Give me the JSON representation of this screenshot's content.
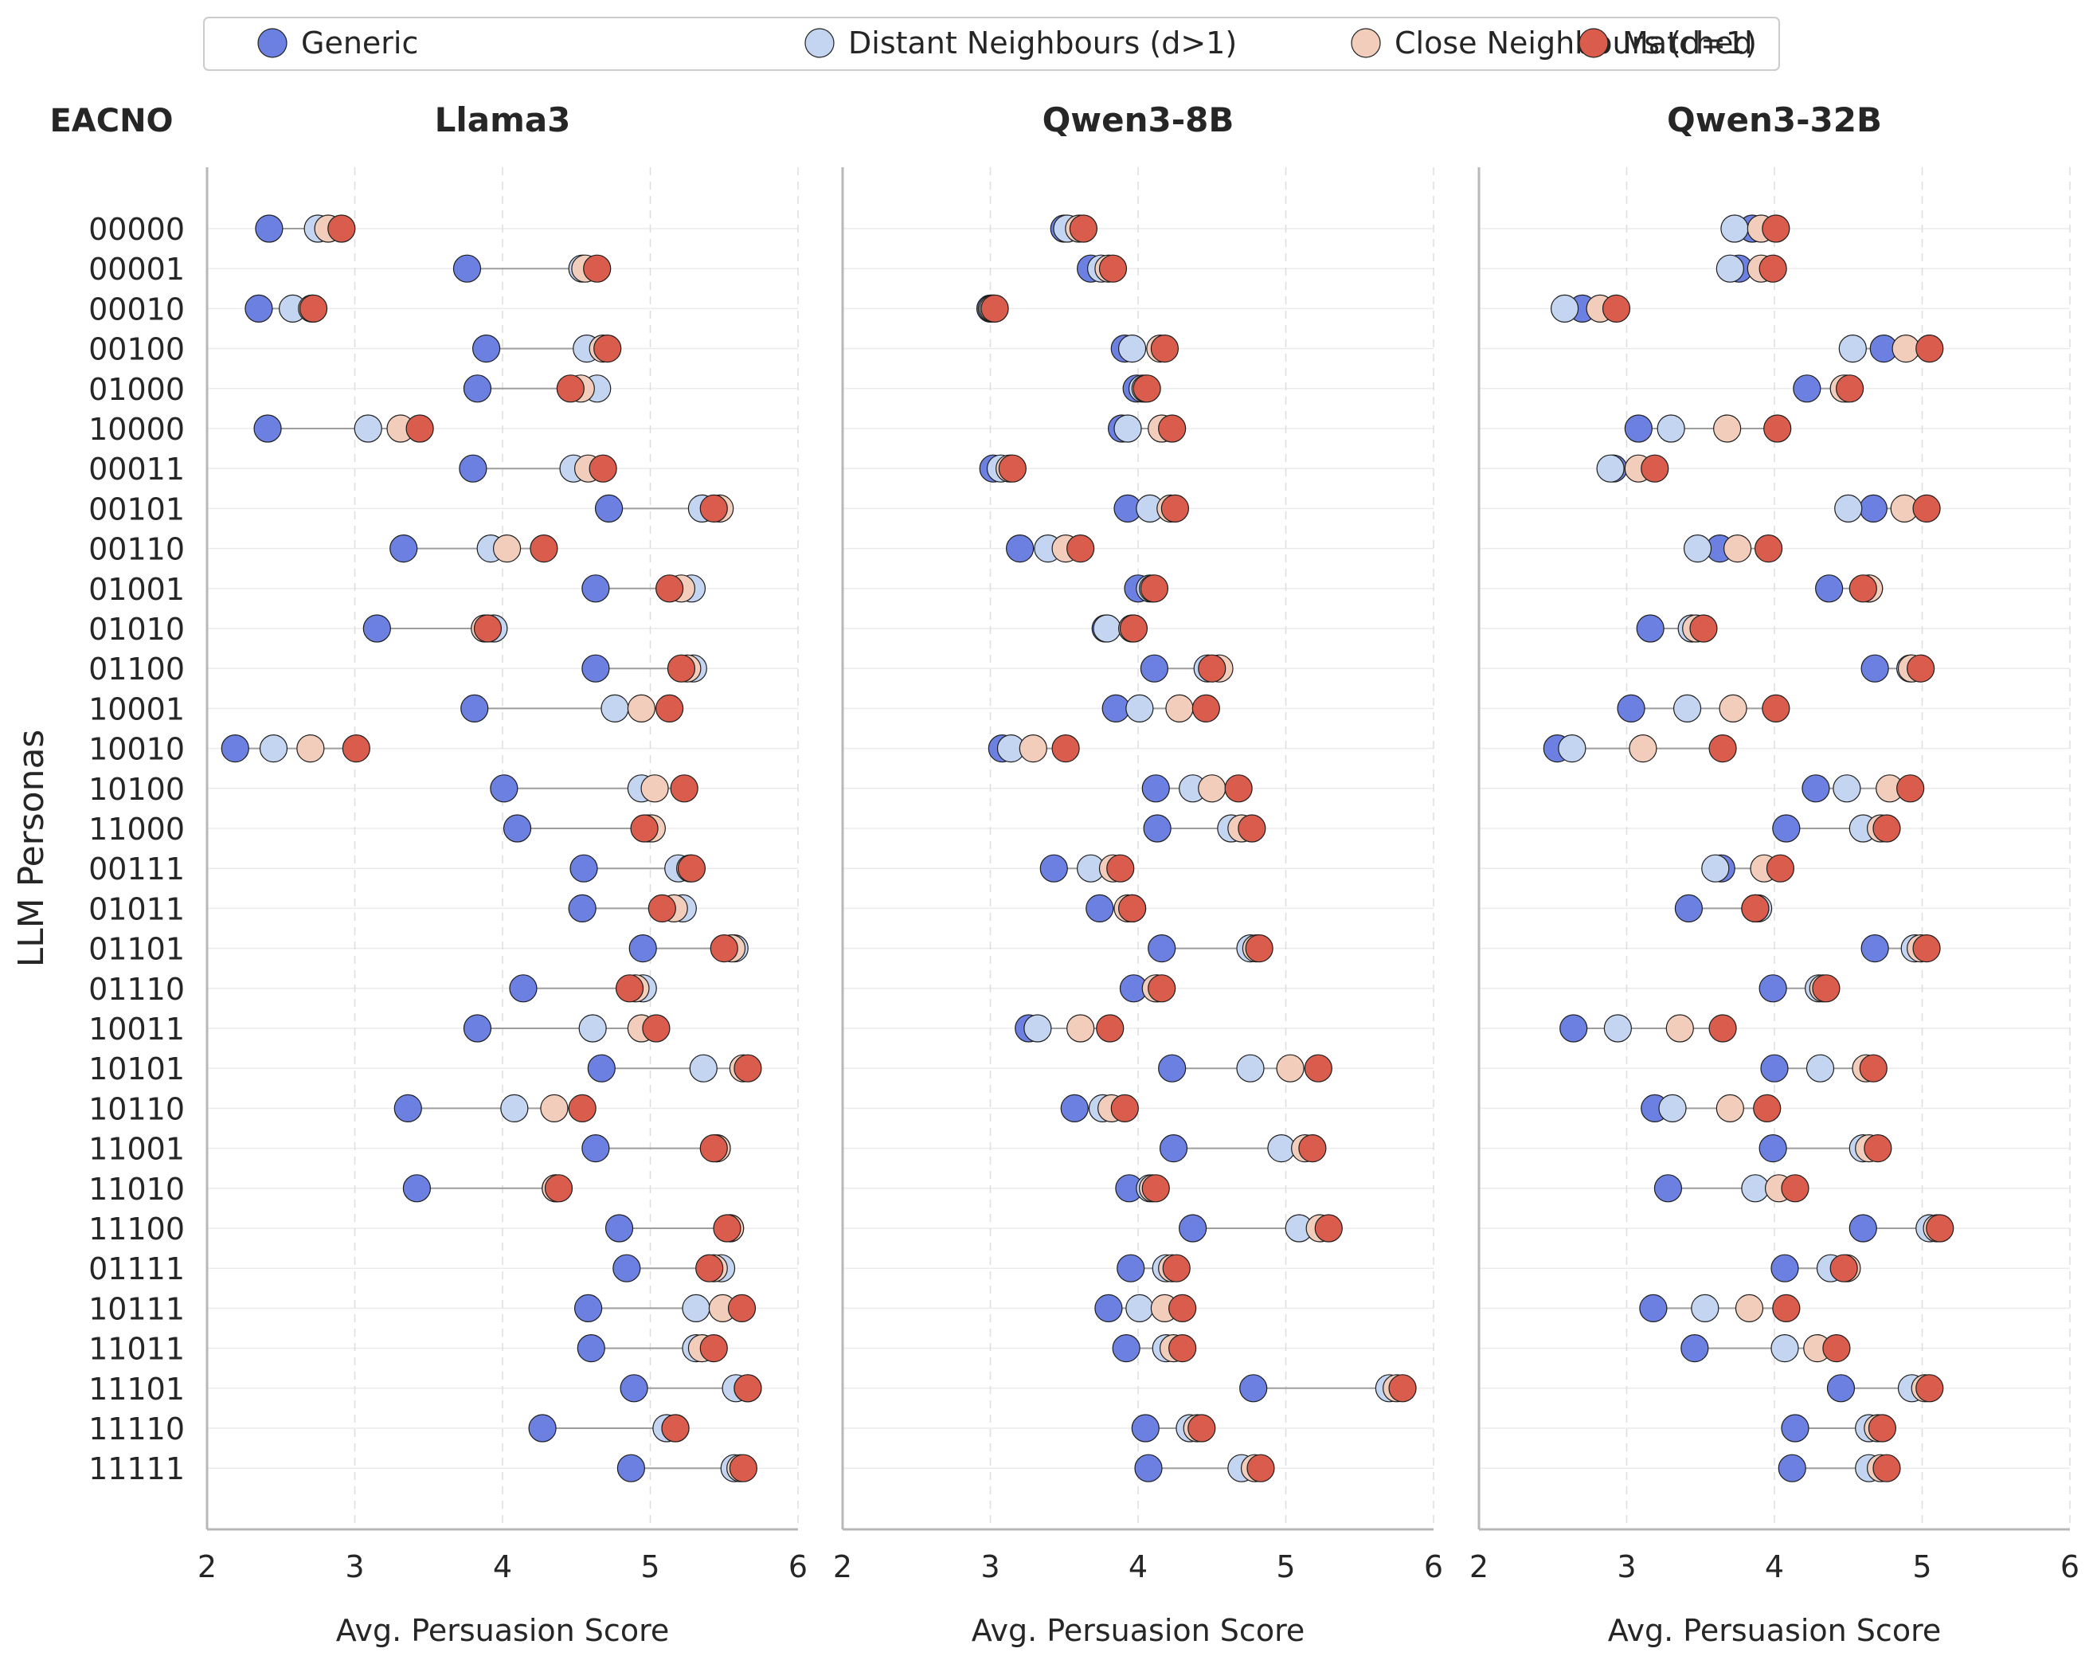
{
  "chart_data": {
    "type": "dot-plot",
    "legend": {
      "placement": "top",
      "entries": [
        {
          "name": "Generic",
          "color": "#6b80e0"
        },
        {
          "name": "Distant Neighbours (d>1)",
          "color": "#c4d5f2"
        },
        {
          "name": "Close Neighbours (d=1)",
          "color": "#f3cdbb"
        },
        {
          "name": "Matched",
          "color": "#d95c4c"
        }
      ]
    },
    "row_header": "EACNO",
    "ylabel": "LLM Personas",
    "xlabel": "Avg. Persuasion Score",
    "xlim": [
      2,
      6
    ],
    "xticks": [
      "2",
      "3",
      "4",
      "5",
      "6"
    ],
    "grid": true,
    "personas": [
      "00000",
      "00001",
      "00010",
      "00100",
      "01000",
      "10000",
      "00011",
      "00101",
      "00110",
      "01001",
      "01010",
      "01100",
      "10001",
      "10010",
      "10100",
      "11000",
      "00111",
      "01011",
      "01101",
      "01110",
      "10011",
      "10101",
      "10110",
      "11001",
      "11010",
      "11100",
      "01111",
      "10111",
      "11011",
      "11101",
      "11110",
      "11111"
    ],
    "panels": [
      {
        "title": "Llama3",
        "generic": [
          2.42,
          3.76,
          2.35,
          3.89,
          3.83,
          2.41,
          3.8,
          4.72,
          3.33,
          4.63,
          3.15,
          4.63,
          3.81,
          2.19,
          4.01,
          4.1,
          4.55,
          4.54,
          4.95,
          4.14,
          3.83,
          4.67,
          3.36,
          4.63,
          3.42,
          4.79,
          4.84,
          4.58,
          4.6,
          4.89,
          4.27,
          4.87
        ],
        "distant": [
          2.75,
          4.54,
          2.58,
          4.57,
          4.64,
          3.09,
          4.48,
          5.35,
          3.92,
          5.28,
          3.94,
          5.29,
          4.76,
          2.45,
          4.94,
          4.98,
          5.19,
          5.22,
          5.57,
          4.95,
          4.61,
          5.36,
          4.08,
          5.45,
          4.36,
          5.54,
          5.48,
          5.31,
          5.31,
          5.58,
          5.11,
          5.57
        ],
        "close": [
          2.82,
          4.56,
          2.71,
          4.68,
          4.53,
          3.31,
          4.58,
          5.47,
          4.03,
          5.21,
          3.88,
          5.25,
          4.94,
          2.7,
          5.03,
          5.01,
          5.27,
          5.16,
          5.55,
          4.9,
          4.94,
          5.63,
          4.35,
          5.45,
          4.36,
          5.54,
          5.43,
          5.49,
          5.35,
          5.66,
          5.17,
          5.61
        ],
        "matched": [
          2.91,
          4.64,
          2.72,
          4.71,
          4.46,
          3.44,
          4.68,
          5.43,
          4.28,
          5.13,
          3.9,
          5.21,
          5.13,
          3.01,
          5.23,
          4.96,
          5.28,
          5.08,
          5.5,
          4.86,
          5.04,
          5.66,
          4.54,
          5.43,
          4.38,
          5.52,
          5.4,
          5.62,
          5.43,
          5.66,
          5.17,
          5.63
        ]
      },
      {
        "title": "Qwen3-8B",
        "generic": [
          3.5,
          3.68,
          3.0,
          3.91,
          3.99,
          3.89,
          3.02,
          3.93,
          3.2,
          4.0,
          3.78,
          4.11,
          3.85,
          3.08,
          4.12,
          4.13,
          3.43,
          3.74,
          4.16,
          3.97,
          3.26,
          4.23,
          3.57,
          4.24,
          3.94,
          4.37,
          3.95,
          3.8,
          3.92,
          4.78,
          4.05,
          4.07
        ],
        "distant": [
          3.52,
          3.75,
          3.01,
          3.96,
          4.03,
          3.93,
          3.07,
          4.08,
          3.39,
          4.08,
          3.79,
          4.47,
          4.01,
          3.14,
          4.37,
          4.63,
          3.68,
          3.96,
          4.76,
          4.13,
          3.32,
          4.76,
          3.76,
          4.97,
          4.08,
          5.09,
          4.19,
          4.01,
          4.19,
          5.7,
          4.35,
          4.7
        ],
        "close": [
          3.6,
          3.8,
          3.02,
          4.15,
          4.05,
          4.16,
          3.13,
          4.22,
          3.51,
          4.1,
          3.96,
          4.55,
          4.28,
          3.29,
          4.5,
          4.7,
          3.83,
          3.93,
          4.8,
          4.12,
          3.61,
          5.03,
          3.82,
          5.13,
          4.1,
          5.23,
          4.23,
          4.18,
          4.24,
          5.75,
          4.4,
          4.79
        ],
        "matched": [
          3.63,
          3.83,
          3.03,
          4.18,
          4.06,
          4.23,
          3.15,
          4.25,
          3.61,
          4.11,
          3.97,
          4.5,
          4.46,
          3.51,
          4.68,
          4.77,
          3.88,
          3.96,
          4.82,
          4.16,
          3.81,
          5.22,
          3.91,
          5.18,
          4.12,
          5.29,
          4.26,
          4.3,
          4.3,
          5.79,
          4.43,
          4.83
        ]
      },
      {
        "title": "Qwen3-32B",
        "generic": [
          3.85,
          3.76,
          2.7,
          4.74,
          4.22,
          3.08,
          2.91,
          4.67,
          3.63,
          4.37,
          3.16,
          4.68,
          3.03,
          2.53,
          4.28,
          4.08,
          3.64,
          3.42,
          4.68,
          3.99,
          2.64,
          4.0,
          3.19,
          3.99,
          3.28,
          4.6,
          4.07,
          3.18,
          3.46,
          4.45,
          4.14,
          4.12
        ],
        "distant": [
          3.73,
          3.7,
          2.58,
          4.53,
          4.49,
          3.3,
          2.89,
          4.5,
          3.48,
          4.64,
          3.44,
          4.92,
          3.41,
          2.63,
          4.49,
          4.6,
          3.6,
          3.89,
          4.95,
          4.3,
          2.94,
          4.31,
          3.31,
          4.6,
          3.87,
          5.05,
          4.38,
          3.53,
          4.07,
          4.93,
          4.64,
          4.64
        ],
        "close": [
          3.91,
          3.91,
          2.82,
          4.89,
          4.47,
          3.68,
          3.08,
          4.88,
          3.75,
          4.64,
          3.47,
          4.93,
          3.72,
          3.11,
          4.78,
          4.72,
          3.93,
          3.87,
          4.99,
          4.33,
          3.36,
          4.62,
          3.7,
          4.64,
          4.03,
          5.1,
          4.49,
          3.83,
          4.29,
          5.02,
          4.7,
          4.72
        ],
        "matched": [
          4.01,
          3.99,
          2.93,
          5.05,
          4.51,
          4.02,
          3.19,
          5.03,
          3.96,
          4.6,
          3.52,
          4.99,
          4.01,
          3.65,
          4.92,
          4.76,
          4.04,
          3.87,
          5.03,
          4.35,
          3.65,
          4.67,
          3.95,
          4.7,
          4.14,
          5.12,
          4.47,
          4.08,
          4.42,
          5.05,
          4.73,
          4.76
        ]
      }
    ]
  }
}
